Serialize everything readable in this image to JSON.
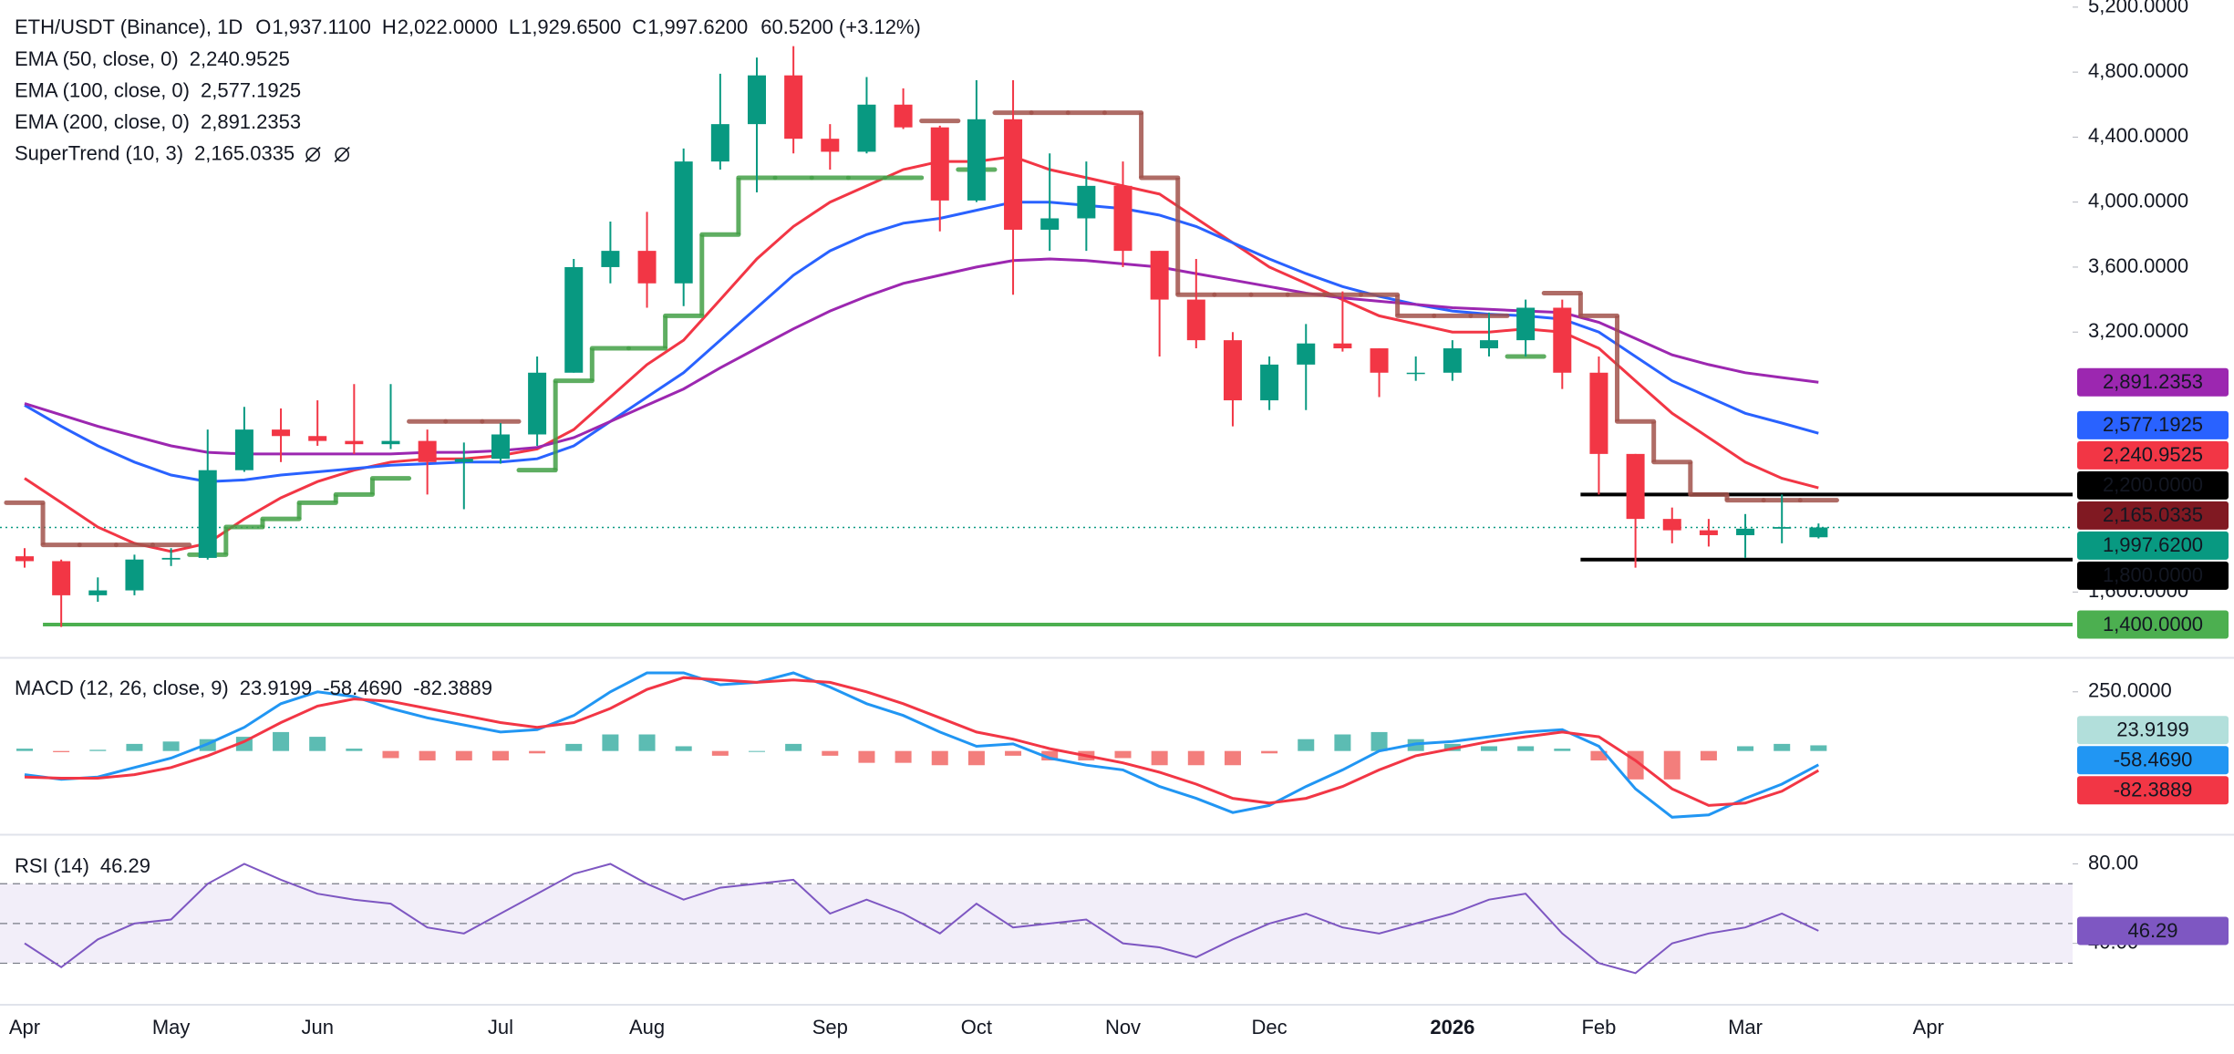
{
  "chart_data": [
    {
      "type": "candlestick",
      "title": "ETH/USDT (Binance), 1D",
      "ohlc_names": [
        "O",
        "H",
        "L",
        "C"
      ],
      "ohlc_labels": [
        "1,937.1100",
        "2,022.0000",
        "1,929.6500",
        "1,997.6200"
      ],
      "change_label": "60.5200 (+3.12%)",
      "categories": [
        "Apr",
        null,
        null,
        null,
        "May",
        null,
        null,
        null,
        "Jun",
        null,
        null,
        null,
        null,
        "Jul",
        null,
        null,
        null,
        "Aug",
        null,
        null,
        null,
        null,
        "Sep",
        null,
        null,
        null,
        "Oct",
        null,
        null,
        null,
        "Nov",
        null,
        null,
        null,
        "Dec",
        null,
        null,
        null,
        null,
        "2026",
        null,
        null,
        null,
        "Feb",
        null,
        null,
        null,
        "Mar",
        null,
        null,
        null,
        null,
        "Apr",
        null
      ],
      "open": [
        1820,
        1790,
        1580,
        1610,
        1800,
        1810,
        2350,
        2600,
        2560,
        2530,
        2510,
        2530,
        2400,
        2420,
        2570,
        2950,
        3600,
        3700,
        3500,
        4250,
        4480,
        4780,
        4390,
        4310,
        4600,
        4460,
        4010,
        4510,
        3830,
        3900,
        4100,
        3700,
        3400,
        3150,
        2780,
        3000,
        3130,
        3100,
        2950,
        2950,
        3100,
        3150,
        3350,
        2950,
        2450,
        2050,
        1980,
        1950,
        1990,
        1937.11,
        null,
        null,
        null,
        null
      ],
      "high": [
        1870,
        1800,
        1690,
        1830,
        1870,
        2600,
        2740,
        2730,
        2780,
        2880,
        2880,
        2600,
        2520,
        2640,
        3050,
        3650,
        3880,
        3940,
        4330,
        4790,
        4890,
        4960,
        4480,
        4770,
        4700,
        4470,
        4750,
        4750,
        4300,
        4250,
        4250,
        3700,
        3650,
        3200,
        3050,
        3250,
        3450,
        3100,
        3050,
        3150,
        3320,
        3400,
        3400,
        3050,
        2450,
        2120,
        2050,
        2080,
        2200,
        2022,
        null,
        null,
        null,
        null
      ],
      "low": [
        1750,
        1385,
        1540,
        1580,
        1760,
        1800,
        2340,
        2400,
        2500,
        2450,
        2480,
        2200,
        2110,
        2390,
        2500,
        2950,
        3500,
        3350,
        3360,
        4200,
        4060,
        4300,
        4200,
        4300,
        4450,
        3820,
        4000,
        3430,
        3700,
        3700,
        3600,
        3050,
        3100,
        2620,
        2720,
        2720,
        3080,
        2800,
        2900,
        2900,
        3050,
        3050,
        2850,
        2200,
        1750,
        1900,
        1880,
        1810,
        1900,
        1929.65,
        null,
        null,
        null,
        null
      ],
      "close": [
        1790,
        1580,
        1610,
        1800,
        1810,
        2350,
        2600,
        2560,
        2530,
        2510,
        2530,
        2400,
        2420,
        2570,
        2950,
        3600,
        3700,
        3500,
        4250,
        4480,
        4780,
        4390,
        4310,
        4600,
        4460,
        4010,
        4510,
        3830,
        3900,
        4100,
        3700,
        3400,
        3150,
        2780,
        3000,
        3130,
        3100,
        2950,
        2950,
        3100,
        3150,
        3350,
        2950,
        2450,
        2050,
        1980,
        1950,
        1990,
        2000,
        1997.62,
        null,
        null,
        null,
        null
      ],
      "up_color": "#089981",
      "down_color": "#f23645",
      "ylim": [
        1209,
        5244
      ],
      "yticks": [
        {
          "value": 5200,
          "label": "5,200.0000"
        },
        {
          "value": 4800,
          "label": "4,800.0000"
        },
        {
          "value": 4400,
          "label": "4,400.0000"
        },
        {
          "value": 4000,
          "label": "4,000.0000"
        },
        {
          "value": 3600,
          "label": "3,600.0000"
        },
        {
          "value": 3200,
          "label": "3,200.0000"
        },
        {
          "value": 1600,
          "label": "1,600.0000"
        }
      ],
      "lines": [
        {
          "name": "EMA (50, close, 0)",
          "color": "#f23645",
          "last_label": "2,240.9525",
          "values": [
            2300,
            2150,
            2000,
            1900,
            1850,
            1900,
            2050,
            2180,
            2280,
            2350,
            2400,
            2420,
            2420,
            2440,
            2480,
            2600,
            2800,
            3000,
            3150,
            3400,
            3650,
            3850,
            4000,
            4100,
            4200,
            4250,
            4250,
            4280,
            4200,
            4150,
            4100,
            4050,
            3900,
            3750,
            3600,
            3500,
            3400,
            3300,
            3250,
            3200,
            3200,
            3220,
            3200,
            3100,
            2900,
            2700,
            2550,
            2400,
            2300,
            2240.9525,
            null,
            null,
            null,
            null
          ]
        },
        {
          "name": "EMA (100, close, 0)",
          "color": "#2962ff",
          "last_label": "2,577.1925",
          "values": [
            2750,
            2620,
            2500,
            2400,
            2320,
            2280,
            2290,
            2320,
            2340,
            2360,
            2380,
            2390,
            2400,
            2400,
            2420,
            2500,
            2650,
            2800,
            2950,
            3150,
            3350,
            3550,
            3700,
            3800,
            3870,
            3900,
            3950,
            4000,
            4000,
            3980,
            3960,
            3920,
            3850,
            3750,
            3650,
            3560,
            3480,
            3420,
            3370,
            3330,
            3310,
            3300,
            3280,
            3200,
            3050,
            2900,
            2800,
            2700,
            2640,
            2577.1925,
            null,
            null,
            null,
            null
          ]
        },
        {
          "name": "EMA (200, close, 0)",
          "color": "#9c27b0",
          "last_label": "2,891.2353",
          "values": [
            2760,
            2690,
            2620,
            2560,
            2500,
            2460,
            2450,
            2450,
            2450,
            2450,
            2450,
            2460,
            2460,
            2470,
            2490,
            2550,
            2650,
            2750,
            2850,
            2980,
            3100,
            3220,
            3330,
            3420,
            3500,
            3550,
            3600,
            3640,
            3650,
            3640,
            3620,
            3600,
            3560,
            3520,
            3480,
            3440,
            3410,
            3390,
            3370,
            3350,
            3340,
            3330,
            3320,
            3260,
            3160,
            3060,
            3000,
            2950,
            2920,
            2891.2353,
            null,
            null,
            null,
            null
          ]
        }
      ],
      "supertrend": {
        "name": "SuperTrend (10, 3)",
        "up_color": "#43a047",
        "down_color": "#a1524b",
        "label_color": "#801922",
        "last_label": "2,165.0335",
        "values_up": [
          null,
          null,
          null,
          null,
          null,
          1830,
          2000,
          2050,
          2150,
          2200,
          2300,
          null,
          null,
          null,
          2350,
          2900,
          3100,
          3100,
          3300,
          3800,
          4150,
          4150,
          4150,
          4150,
          4150,
          null,
          4200,
          null,
          null,
          null,
          null,
          null,
          null,
          null,
          null,
          null,
          null,
          null,
          null,
          null,
          null,
          3050,
          null,
          null,
          null,
          null,
          null,
          null,
          null,
          null,
          null,
          null,
          null,
          null
        ],
        "values_down": [
          2150,
          1890,
          1890,
          1890,
          1890,
          null,
          null,
          null,
          null,
          null,
          null,
          2650,
          2650,
          2650,
          null,
          null,
          null,
          null,
          null,
          null,
          null,
          null,
          null,
          null,
          null,
          4500,
          null,
          4550,
          4550,
          4550,
          4550,
          4150,
          3430,
          3430,
          3430,
          3430,
          3430,
          3430,
          3300,
          3300,
          3300,
          null,
          3440,
          3300,
          2650,
          2400,
          2200,
          2165,
          2165,
          2165.0335,
          null,
          null,
          null,
          null
        ]
      },
      "hlines": [
        {
          "value": 2200,
          "label": "2,200.0000",
          "color": "#000000"
        },
        {
          "value": 1800,
          "label": "1,800.0000",
          "color": "#000000"
        },
        {
          "value": 1400,
          "label": "1,400.0000",
          "color": "#4caf50"
        }
      ]
    },
    {
      "type": "macd",
      "title": "MACD (12, 26, close, 9)",
      "ylim": [
        -348,
        384
      ],
      "yticks": [
        {
          "value": 250,
          "label": "250.0000"
        }
      ],
      "histogram": {
        "color": "#26a69a",
        "negative_color": "#ef5350",
        "label_color": "#b2dfdb",
        "last_label": "23.9199",
        "values": [
          10,
          -5,
          5,
          30,
          40,
          50,
          60,
          80,
          60,
          10,
          -30,
          -40,
          -40,
          -40,
          -10,
          30,
          70,
          70,
          20,
          -20,
          0,
          30,
          -20,
          -50,
          -50,
          -60,
          -60,
          -20,
          -40,
          -40,
          -30,
          -60,
          -60,
          -60,
          -10,
          50,
          70,
          80,
          50,
          30,
          20,
          20,
          10,
          -40,
          -120,
          -120,
          -40,
          20,
          30,
          23.9199,
          null,
          null,
          null,
          null
        ]
      },
      "series": [
        {
          "color": "#2196f3",
          "last_label": "-58.4690",
          "values": [
            -100,
            -120,
            -110,
            -70,
            -30,
            30,
            100,
            200,
            250,
            230,
            180,
            140,
            110,
            80,
            90,
            150,
            250,
            330,
            330,
            280,
            290,
            330,
            270,
            200,
            150,
            80,
            20,
            30,
            -30,
            -60,
            -80,
            -150,
            -200,
            -260,
            -230,
            -150,
            -80,
            0,
            30,
            40,
            60,
            80,
            90,
            20,
            -160,
            -280,
            -270,
            -200,
            -140,
            -58.469,
            null,
            null,
            null,
            null
          ]
        },
        {
          "color": "#f23645",
          "last_label": "-82.3889",
          "values": [
            -110,
            -115,
            -115,
            -100,
            -70,
            -20,
            40,
            120,
            190,
            220,
            210,
            180,
            150,
            120,
            100,
            120,
            180,
            260,
            310,
            300,
            290,
            300,
            290,
            250,
            200,
            140,
            80,
            50,
            10,
            -20,
            -50,
            -90,
            -140,
            -200,
            -220,
            -200,
            -150,
            -80,
            -20,
            10,
            40,
            60,
            80,
            60,
            -40,
            -160,
            -230,
            -220,
            -170,
            -82.3889,
            null,
            null,
            null,
            null
          ]
        }
      ]
    },
    {
      "type": "rsi",
      "title": "RSI (14)",
      "ylim": [
        10,
        94
      ],
      "yticks": [
        {
          "value": 80,
          "label": "80.00"
        },
        {
          "value": 40,
          "label": "40.00"
        }
      ],
      "bands": [
        70,
        50,
        30
      ],
      "color": "#7e57c2",
      "values": [
        40,
        28,
        42,
        50,
        52,
        70,
        80,
        72,
        65,
        62,
        60,
        48,
        45,
        55,
        65,
        75,
        80,
        70,
        62,
        68,
        70,
        72,
        55,
        62,
        55,
        45,
        60,
        48,
        50,
        52,
        40,
        38,
        33,
        42,
        50,
        55,
        48,
        45,
        50,
        55,
        62,
        65,
        45,
        30,
        25,
        40,
        45,
        48,
        55,
        46.29,
        null,
        null,
        null,
        null
      ]
    }
  ]
}
